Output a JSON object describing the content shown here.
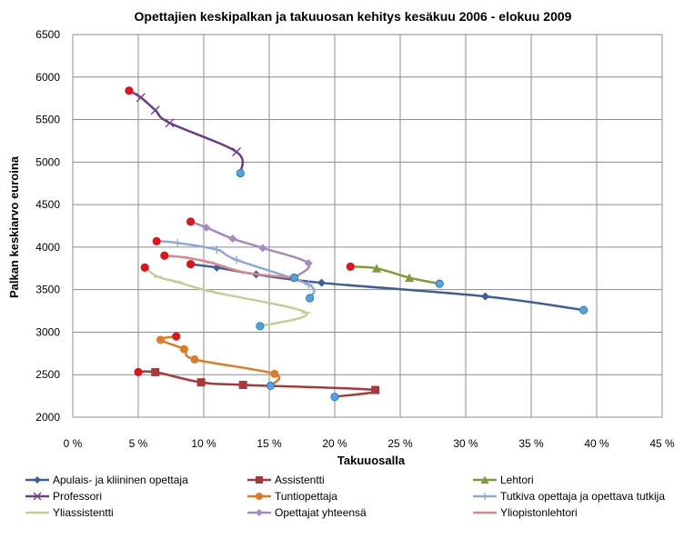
{
  "chart_data": {
    "type": "line",
    "title": "Opettajien keskipalkan ja takuuosan kehitys kesäkuu 2006 - elokuu 2009",
    "xlabel": "Takuuosalla",
    "ylabel": "Palkan keskiarvo euroina",
    "xlim": [
      0,
      45
    ],
    "ylim": [
      2000,
      6500
    ],
    "x_ticks": [
      "0 %",
      "5 %",
      "10 %",
      "15 %",
      "20 %",
      "25 %",
      "30 %",
      "35 %",
      "40 %",
      "45 %"
    ],
    "y_ticks": [
      "2000",
      "2500",
      "3000",
      "3500",
      "4000",
      "4500",
      "5000",
      "5500",
      "6000",
      "6500"
    ],
    "start_marker_color": "#e8101c",
    "end_marker_color": "#4ea3e0",
    "series": [
      {
        "name": "Apulais- ja kliininen opettaja",
        "color": "#3f5e9b",
        "marker": "diamond",
        "points": [
          [
            9,
            3800
          ],
          [
            11,
            3760
          ],
          [
            14,
            3680
          ],
          [
            19,
            3580
          ],
          [
            31.5,
            3420
          ],
          [
            39,
            3260
          ]
        ]
      },
      {
        "name": "Assistentti",
        "color": "#a8393a",
        "marker": "square",
        "points": [
          [
            5,
            2530
          ],
          [
            6.3,
            2530
          ],
          [
            9.8,
            2410
          ],
          [
            13,
            2380
          ],
          [
            23.1,
            2320
          ],
          [
            20,
            2240
          ]
        ]
      },
      {
        "name": "Lehtori",
        "color": "#7e9c33",
        "marker": "triangle",
        "points": [
          [
            21.2,
            3770
          ],
          [
            23.2,
            3750
          ],
          [
            25.7,
            3640
          ],
          [
            28,
            3570
          ]
        ]
      },
      {
        "name": "Professori",
        "color": "#6b3d8a",
        "marker": "x",
        "points": [
          [
            4.3,
            5840
          ],
          [
            5.2,
            5760
          ],
          [
            6.3,
            5610
          ],
          [
            7.4,
            5460
          ],
          [
            12.5,
            5120
          ],
          [
            12.8,
            4870
          ]
        ]
      },
      {
        "name": "Tuntiopettaja",
        "color": "#e07a24",
        "marker": "circle",
        "points": [
          [
            7.9,
            2950
          ],
          [
            6.7,
            2910
          ],
          [
            8.5,
            2800
          ],
          [
            9.3,
            2680
          ],
          [
            15.4,
            2510
          ],
          [
            15.1,
            2370
          ]
        ]
      },
      {
        "name": "Tutkiva opettaja ja opettava tutkija",
        "color": "#8ea9d6",
        "marker": "plus",
        "points": [
          [
            6.4,
            4070
          ],
          [
            8,
            4050
          ],
          [
            11,
            3970
          ],
          [
            12.5,
            3850
          ],
          [
            18,
            3560
          ],
          [
            18.1,
            3400
          ]
        ]
      },
      {
        "name": "Yliassistentti",
        "color": "#bfd193",
        "marker": "dash",
        "points": [
          [
            5.5,
            3760
          ],
          [
            6.5,
            3650
          ],
          [
            8,
            3590
          ],
          [
            10.5,
            3480
          ],
          [
            17.8,
            3230
          ],
          [
            14.3,
            3070
          ]
        ]
      },
      {
        "name": "Opettajat yhteensä",
        "color": "#a48ac3",
        "marker": "diamond",
        "points": [
          [
            9,
            4300
          ],
          [
            10.2,
            4230
          ],
          [
            12.2,
            4100
          ],
          [
            14.5,
            3990
          ],
          [
            18,
            3810
          ],
          [
            16.9,
            3640
          ]
        ]
      },
      {
        "name": "Yliopistonlehtori",
        "color": "#d9888a",
        "marker": "dash",
        "points": [
          [
            7,
            3900
          ],
          [
            8.5,
            3880
          ],
          [
            10.5,
            3820
          ],
          [
            13.2,
            3700
          ],
          [
            16.9,
            3640
          ]
        ]
      }
    ]
  }
}
